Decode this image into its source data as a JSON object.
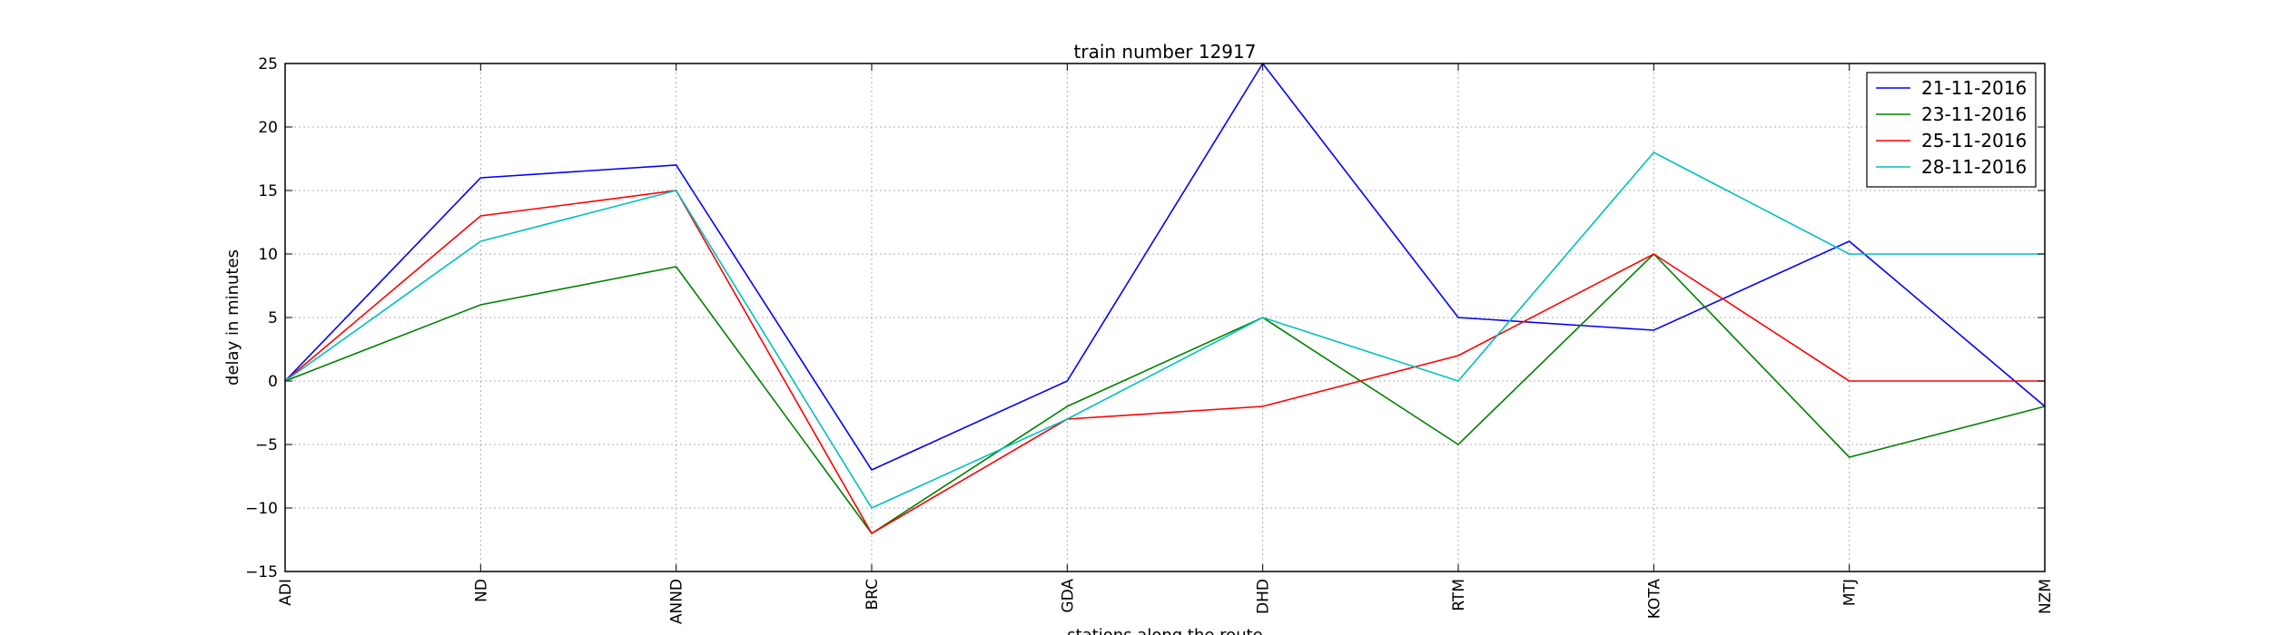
{
  "chart_data": {
    "type": "line",
    "title": "train number 12917",
    "xlabel": "stations along the route",
    "ylabel": "delay in minutes",
    "categories": [
      "ADI",
      "ND",
      "ANND",
      "BRC",
      "GDA",
      "DHD",
      "RTM",
      "KOTA",
      "MTJ",
      "NZM"
    ],
    "ylim": [
      -15,
      25
    ],
    "yticks": [
      "25",
      "20",
      "15",
      "10",
      "5",
      "0",
      "−5",
      "−10",
      "−15"
    ],
    "grid": true,
    "legend_position": "top-right",
    "series": [
      {
        "name": "21-11-2016",
        "color": "#0000ff",
        "values": [
          0,
          16,
          17,
          -7,
          0,
          25,
          5,
          4,
          11,
          -2
        ]
      },
      {
        "name": "23-11-2016",
        "color": "#008000",
        "values": [
          0,
          6,
          9,
          -12,
          -2,
          5,
          -5,
          10,
          -6,
          -2
        ]
      },
      {
        "name": "25-11-2016",
        "color": "#ff0000",
        "values": [
          0,
          13,
          15,
          -12,
          -3,
          -2,
          2,
          10,
          0,
          0
        ]
      },
      {
        "name": "28-11-2016",
        "color": "#00bfbf",
        "values": [
          0,
          11,
          15,
          -10,
          -3,
          5,
          0,
          18,
          10,
          10
        ]
      }
    ]
  }
}
